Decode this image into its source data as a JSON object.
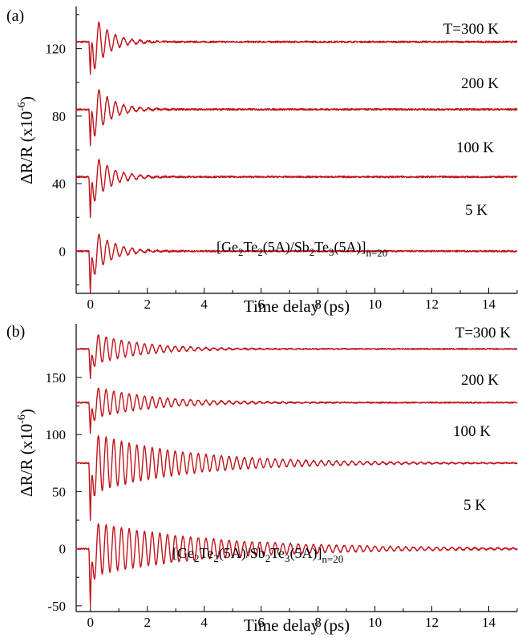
{
  "figure": {
    "trace_color": "#c0141c",
    "axis_color": "#000000"
  },
  "chart_data": [
    {
      "type": "line",
      "panel_label": "(a)",
      "xlabel": "Time delay (ps)",
      "ylabel_main": "ΔR/R (x10",
      "ylabel_exp": "-6",
      "ylabel_tail": ")",
      "xlim": [
        -0.5,
        15
      ],
      "ylim": [
        -25,
        145
      ],
      "xticks": [
        0,
        2,
        4,
        6,
        8,
        10,
        12,
        14
      ],
      "yticks": [
        0,
        40,
        80,
        120
      ],
      "annotation": {
        "base": "[Ge",
        "s1": "2",
        "t1": "Te",
        "s2": "2",
        "t2": "(5A)/Sb",
        "s3": "2",
        "t3": "Te",
        "s4": "3",
        "t4": "(5A)]",
        "s5": "n=20"
      },
      "series": [
        {
          "label": "T=300 K",
          "offset": 124,
          "dip": -20,
          "amp": 20,
          "period_ps": 0.29,
          "decay_ps": 0.55
        },
        {
          "label": "200 K",
          "offset": 84,
          "dip": -22,
          "amp": 19,
          "period_ps": 0.29,
          "decay_ps": 0.6
        },
        {
          "label": "100 K",
          "offset": 44,
          "dip": -25,
          "amp": 17,
          "period_ps": 0.29,
          "decay_ps": 0.62
        },
        {
          "label": "5 K",
          "offset": 0,
          "dip": -26,
          "amp": 16,
          "period_ps": 0.29,
          "decay_ps": 0.65
        }
      ]
    },
    {
      "type": "line",
      "panel_label": "(b)",
      "xlabel": "Time delay (ps)",
      "ylabel_main": "ΔR/R (x10",
      "ylabel_exp": "-6",
      "ylabel_tail": ")",
      "xlim": [
        -0.5,
        15
      ],
      "ylim": [
        -55,
        197
      ],
      "xticks": [
        0,
        2,
        4,
        6,
        8,
        10,
        12,
        14
      ],
      "yticks": [
        -50,
        0,
        50,
        100,
        150
      ],
      "annotation": {
        "base": "[Ge",
        "s1": "2",
        "t1": "Te",
        "s2": "2",
        "t2": "(5A)/Sb",
        "s3": "2",
        "t3": "Te",
        "s4": "3",
        "t4": "(5A)]",
        "s5": "n=20"
      },
      "series": [
        {
          "label": "T=300 K",
          "offset": 175,
          "dip": -27,
          "amp": 15,
          "period_ps": 0.27,
          "decay_ps": 1.6
        },
        {
          "label": "200 K",
          "offset": 128,
          "dip": -28,
          "amp": 15,
          "period_ps": 0.27,
          "decay_ps": 2.0
        },
        {
          "label": "100 K",
          "offset": 75,
          "dip": -52,
          "amp": 27,
          "period_ps": 0.27,
          "decay_ps": 3.2
        },
        {
          "label": "5 K",
          "offset": 0,
          "dip": -52,
          "amp": 24,
          "period_ps": 0.27,
          "decay_ps": 4.2
        }
      ]
    }
  ]
}
